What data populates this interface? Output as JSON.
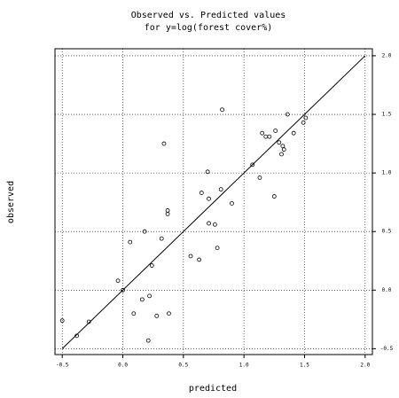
{
  "chart_data": {
    "type": "scatter",
    "title": [
      "Observed vs. Predicted values",
      "for y=log(forest cover%)"
    ],
    "xlabel": "predicted",
    "ylabel": "observed",
    "xlim": [
      -0.56,
      2.06
    ],
    "ylim": [
      -0.55,
      2.06
    ],
    "xticks": [
      {
        "value": -0.5,
        "label": "-0.5"
      },
      {
        "value": 0,
        "label": "0.0"
      },
      {
        "value": 0.5,
        "label": "0.5"
      },
      {
        "value": 1,
        "label": "1.0"
      },
      {
        "value": 1.5,
        "label": "1.5"
      },
      {
        "value": 2,
        "label": "2.0"
      }
    ],
    "yticks": [
      {
        "value": -0.5,
        "label": "-0.5"
      },
      {
        "value": 0,
        "label": "0.0"
      },
      {
        "value": 0.5,
        "label": "0.5"
      },
      {
        "value": 1,
        "label": "1.0"
      },
      {
        "value": 1.5,
        "label": "1.5"
      },
      {
        "value": 2,
        "label": "2.0"
      }
    ],
    "grid": true,
    "color": "#000000",
    "line": {
      "x": [
        -0.5,
        2.0
      ],
      "y": [
        -0.5,
        2.0
      ]
    },
    "x": [
      -0.5,
      -0.38,
      -0.28,
      -0.04,
      0,
      0.06,
      0.09,
      0.16,
      0.18,
      0.22,
      0.24,
      0.21,
      0.28,
      0.32,
      0.34,
      0.37,
      0.37,
      0.38,
      0.56,
      0.63,
      0.65,
      0.7,
      0.71,
      0.71,
      0.76,
      0.78,
      0.81,
      0.82,
      0.9,
      1.07,
      1.13,
      1.15,
      1.18,
      1.21,
      1.25,
      1.26,
      1.29,
      1.31,
      1.32,
      1.33,
      1.36,
      1.41,
      1.49,
      1.51
    ],
    "y": [
      -0.26,
      -0.39,
      -0.27,
      0.08,
      0,
      0.41,
      -0.2,
      -0.08,
      0.5,
      -0.05,
      0.21,
      -0.43,
      -0.22,
      0.44,
      1.25,
      0.68,
      0.65,
      -0.2,
      0.29,
      0.26,
      0.83,
      1.01,
      0.57,
      0.78,
      0.56,
      0.36,
      0.86,
      1.54,
      0.74,
      1.07,
      0.96,
      1.34,
      1.31,
      1.31,
      0.8,
      1.36,
      1.26,
      1.16,
      1.23,
      1.2,
      1.5,
      1.34,
      1.43,
      1.47
    ]
  }
}
